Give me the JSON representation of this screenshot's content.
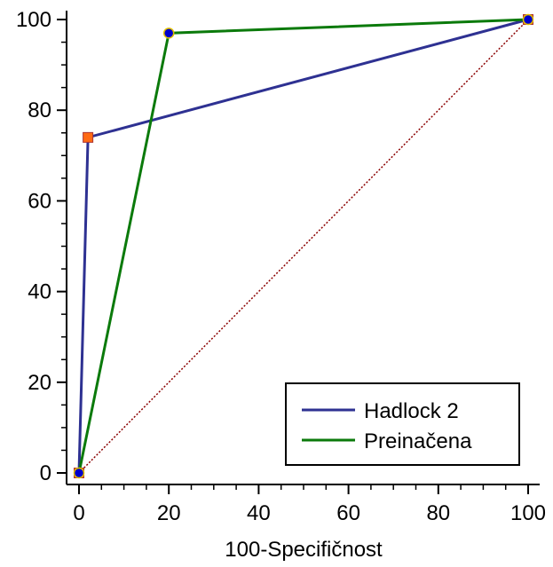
{
  "chart_data": {
    "type": "line",
    "title": "",
    "xlabel": "100-Specifičnost",
    "ylabel": "",
    "xlim": [
      0,
      100
    ],
    "ylim": [
      0,
      100
    ],
    "x_ticks": [
      0,
      20,
      40,
      60,
      80,
      100
    ],
    "y_ticks": [
      0,
      20,
      40,
      60,
      80,
      100
    ],
    "grid": false,
    "legend_position": "bottom-right",
    "diagonal_reference": {
      "points": [
        [
          0,
          0
        ],
        [
          100,
          100
        ]
      ],
      "color": "#8B0000",
      "style": "dotted"
    },
    "series": [
      {
        "name": "Hadlock 2",
        "color": "#2E3192",
        "marker_fill": "#FF6A13",
        "marker_shape": "square",
        "points": [
          [
            0,
            0
          ],
          [
            2,
            74
          ],
          [
            100,
            100
          ]
        ]
      },
      {
        "name": "Preinačena",
        "color": "#0B7A0B",
        "marker_fill": "#0000CC",
        "marker_shape": "circle",
        "points": [
          [
            0,
            0
          ],
          [
            20,
            97
          ],
          [
            100,
            100
          ]
        ]
      }
    ]
  }
}
